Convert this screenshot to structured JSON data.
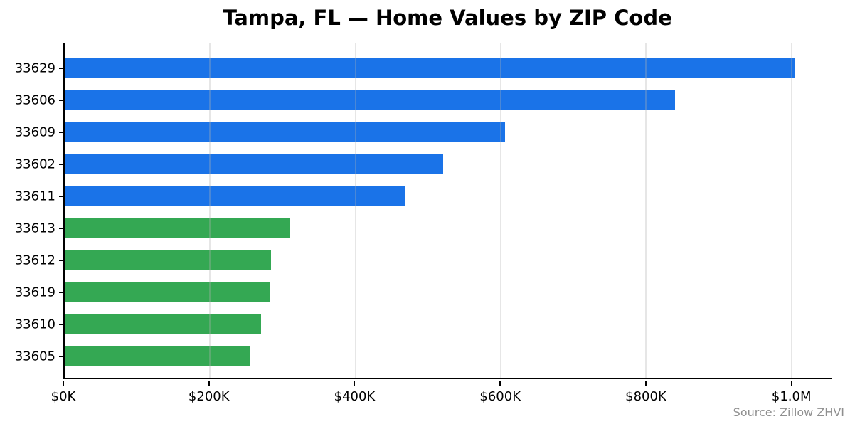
{
  "title": "Tampa, FL — Home Values by ZIP Code",
  "source_note": "Source: Zillow ZHVI",
  "colors": {
    "top_bars_blue": "#1a73e8",
    "bottom_bars_green": "#34a853",
    "gridline_over_white": "#e7e7e7",
    "axis_spine": "#000000",
    "source_text": "#8f8f8f",
    "background": "#ffffff"
  },
  "chart_data": {
    "type": "bar",
    "orientation": "horizontal",
    "title": "Tampa, FL — Home Values by ZIP Code",
    "categories": [
      "33629",
      "33606",
      "33609",
      "33602",
      "33611",
      "33613",
      "33612",
      "33619",
      "33610",
      "33605"
    ],
    "values": [
      1005000,
      840000,
      606000,
      521000,
      468000,
      310000,
      284000,
      282000,
      270000,
      254000
    ],
    "bar_colors": [
      "#1a73e8",
      "#1a73e8",
      "#1a73e8",
      "#1a73e8",
      "#1a73e8",
      "#34a853",
      "#34a853",
      "#34a853",
      "#34a853",
      "#34a853"
    ],
    "xlabel": "",
    "ylabel": "",
    "x_tick_values": [
      0,
      200000,
      400000,
      600000,
      800000,
      1000000
    ],
    "x_tick_labels": [
      "$0K",
      "$200K",
      "$400K",
      "$600K",
      "$800K",
      "$1.0M"
    ],
    "xlim": [
      0,
      1055000
    ],
    "grid": "vertical gridlines at x ticks, light gray, drawn over bars",
    "legend": "none",
    "annotation": "Source: Zillow ZHVI"
  }
}
